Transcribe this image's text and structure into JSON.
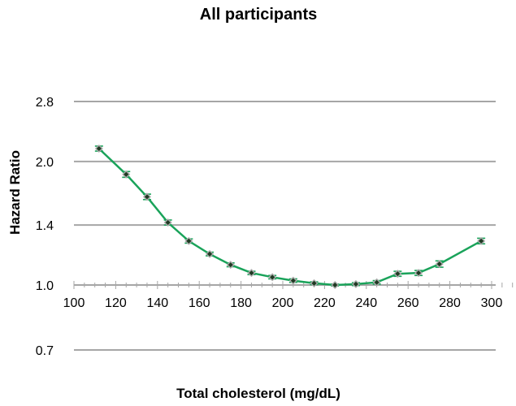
{
  "chart_data": {
    "type": "line",
    "title": "All participants",
    "xlabel": "Total cholesterol (mg/dL)",
    "ylabel": "Hazard Ratio",
    "y_scale": "log",
    "xlim": [
      100,
      310
    ],
    "ylim": [
      0.7,
      2.8
    ],
    "x_ticks": [
      "100",
      "120",
      "140",
      "160",
      "180",
      "200",
      "220",
      "240",
      "260",
      "280",
      "300"
    ],
    "y_ticks": [
      {
        "value": 0.7,
        "label": "0.7"
      },
      {
        "value": 1.0,
        "label": "1.0"
      },
      {
        "value": 1.4,
        "label": "1.4"
      },
      {
        "value": 2.0,
        "label": "2.0"
      },
      {
        "value": 2.8,
        "label": "2.8"
      }
    ],
    "grid": true,
    "legend": "none",
    "colors": {
      "line": "#1aa35a",
      "marker": "#1e3a22"
    },
    "series": [
      {
        "x": [
          112,
          125,
          135,
          145,
          155,
          165,
          175,
          185,
          195,
          205,
          215,
          225,
          235,
          245,
          255,
          265,
          275,
          295
        ],
        "y": [
          2.15,
          1.86,
          1.64,
          1.42,
          1.28,
          1.19,
          1.12,
          1.07,
          1.045,
          1.025,
          1.01,
          1.0,
          1.005,
          1.015,
          1.065,
          1.07,
          1.125,
          1.28
        ],
        "err": [
          0.03,
          0.03,
          0.025,
          0.02,
          0.015,
          0.012,
          0.012,
          0.01,
          0.01,
          0.01,
          0.008,
          0.005,
          0.008,
          0.01,
          0.015,
          0.015,
          0.02,
          0.02
        ]
      }
    ]
  }
}
